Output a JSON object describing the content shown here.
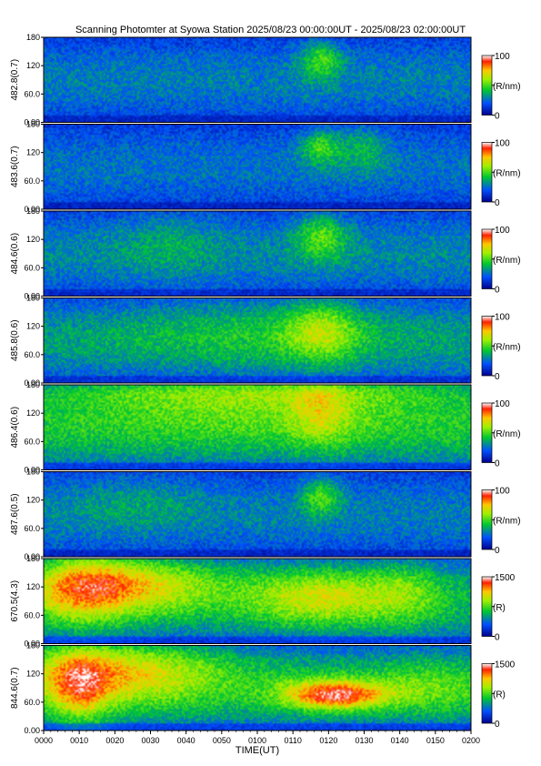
{
  "title": "Scanning Photomter at Syowa Station 2025/08/23 00:00:00UT - 2025/08/23 02:00:00UT",
  "chart_data": {
    "type": "heatmap",
    "x_axis": {
      "label": "TIME(UT)",
      "range_minutes": [
        0,
        120
      ],
      "ticks": [
        "0000",
        "0010",
        "0020",
        "0030",
        "0040",
        "0050",
        "0100",
        "0110",
        "0120",
        "0130",
        "0140",
        "0150",
        "0200"
      ]
    },
    "y_ticks": [
      "0.00",
      "60.0",
      "120",
      "180"
    ],
    "y_range": [
      0,
      180
    ],
    "panels": [
      {
        "name": "482.8(0.7)",
        "cbar_max": "100",
        "cbar_min": "0",
        "cbar_unit": "(R/nm)",
        "base": 0.28,
        "bright": [
          [
            78,
            135,
            4,
            30,
            0.25
          ]
        ]
      },
      {
        "name": "483.6(0.7)",
        "cbar_max": "100",
        "cbar_min": "0",
        "cbar_unit": "(R/nm)",
        "base": 0.26,
        "bright": [
          [
            78,
            135,
            4,
            28,
            0.25
          ],
          [
            90,
            135,
            5,
            40,
            0.15
          ]
        ]
      },
      {
        "name": "484.6(0.6)",
        "cbar_max": "100",
        "cbar_min": "0",
        "cbar_unit": "(R/nm)",
        "base": 0.3,
        "bright": [
          [
            78,
            130,
            5,
            35,
            0.25
          ],
          [
            35,
            120,
            10,
            60,
            0.08
          ]
        ]
      },
      {
        "name": "485.8(0.6)",
        "cbar_max": "100",
        "cbar_min": "0",
        "cbar_unit": "(R/nm)",
        "base": 0.34,
        "bright": [
          [
            78,
            110,
            7,
            45,
            0.25
          ],
          [
            60,
            110,
            25,
            60,
            0.1
          ]
        ]
      },
      {
        "name": "486.4(0.6)",
        "cbar_max": "100",
        "cbar_min": "0",
        "cbar_unit": "(R/nm)",
        "base": 0.42,
        "bright": [
          [
            60,
            170,
            50,
            25,
            0.22
          ],
          [
            78,
            120,
            6,
            50,
            0.18
          ],
          [
            60,
            130,
            35,
            45,
            0.12
          ]
        ]
      },
      {
        "name": "487.6(0.5)",
        "cbar_max": "100",
        "cbar_min": "0",
        "cbar_unit": "(R/nm)",
        "base": 0.28,
        "bright": [
          [
            78,
            130,
            4,
            30,
            0.25
          ],
          [
            25,
            120,
            15,
            50,
            0.08
          ]
        ]
      },
      {
        "name": "670.5(4.3)",
        "cbar_max": "1500",
        "cbar_min": "0",
        "cbar_unit": "(R)",
        "base": 0.38,
        "bright": [
          [
            25,
            130,
            18,
            45,
            0.35
          ],
          [
            10,
            120,
            10,
            60,
            0.3
          ],
          [
            78,
            100,
            14,
            45,
            0.3
          ],
          [
            102,
            110,
            8,
            55,
            0.15
          ]
        ]
      },
      {
        "name": "844.6(0.7)",
        "cbar_max": "1500",
        "cbar_min": "0",
        "cbar_unit": "(R)",
        "base": 0.42,
        "bright": [
          [
            20,
            130,
            20,
            50,
            0.35
          ],
          [
            82,
            75,
            10,
            22,
            0.55
          ],
          [
            10,
            90,
            6,
            60,
            0.3
          ],
          [
            108,
            90,
            10,
            40,
            0.12
          ]
        ]
      }
    ]
  }
}
